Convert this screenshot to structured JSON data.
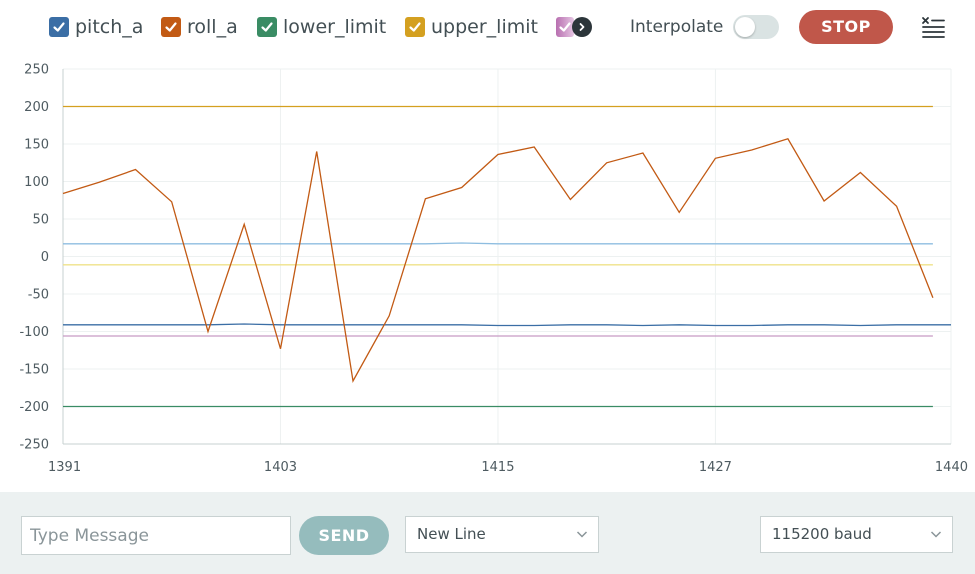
{
  "toolbar": {
    "legend": [
      {
        "label": "pitch_a",
        "color": "#3b6ea5",
        "checked": true
      },
      {
        "label": "roll_a",
        "color": "#c25a14",
        "checked": true
      },
      {
        "label": "lower_limit",
        "color": "#3a8c64",
        "checked": true
      },
      {
        "label": "upper_limit",
        "color": "#d4a020",
        "checked": true
      }
    ],
    "partial_legend_color": "#b86fb0",
    "more_icon": "chevron-right-icon",
    "interpolate_label": "Interpolate",
    "interpolate_on": false,
    "stop_label": "STOP",
    "clear_icon": "clear-list-icon"
  },
  "chart_data": {
    "type": "line",
    "x": [
      1391,
      1393,
      1395,
      1397,
      1399,
      1401,
      1403,
      1405,
      1407,
      1409,
      1411,
      1413,
      1415,
      1417,
      1419,
      1421,
      1423,
      1425,
      1427,
      1429,
      1431,
      1433,
      1435,
      1437,
      1439,
      1440
    ],
    "xticks": [
      1391,
      1403,
      1415,
      1427,
      1440
    ],
    "ylim": [
      -250,
      250
    ],
    "yticks": [
      250,
      200,
      150,
      100,
      50,
      0,
      -50,
      -100,
      -150,
      -200,
      -250
    ],
    "grid": true,
    "series": [
      {
        "name": "roll_a",
        "color": "#c25a14",
        "values": [
          84,
          99,
          116,
          73,
          -100,
          43,
          -123,
          140,
          -166,
          -79,
          77,
          92,
          136,
          146,
          76,
          125,
          138,
          59,
          131,
          142,
          157,
          74,
          112,
          67,
          -55,
          null
        ]
      },
      {
        "name": "pitch_a",
        "color": "#3b6ea5",
        "values": [
          -91,
          -91,
          -91,
          -91,
          -91,
          -90,
          -91,
          -91,
          -91,
          -91,
          -91,
          -91,
          -92,
          -92,
          -91,
          -91,
          -92,
          -91,
          -92,
          -92,
          -91,
          -91,
          -92,
          -91,
          -91,
          -91
        ]
      },
      {
        "name": "lower_limit",
        "color": "#3a8c64",
        "values": [
          -200,
          -200,
          -200,
          -200,
          -200,
          -200,
          -200,
          -200,
          -200,
          -200,
          -200,
          -200,
          -200,
          -200,
          -200,
          -200,
          -200,
          -200,
          -200,
          -200,
          -200,
          -200,
          -200,
          -200,
          -200,
          null
        ]
      },
      {
        "name": "upper_limit",
        "color": "#d4a020",
        "values": [
          200,
          200,
          200,
          200,
          200,
          200,
          200,
          200,
          200,
          200,
          200,
          200,
          200,
          200,
          200,
          200,
          200,
          200,
          200,
          200,
          200,
          200,
          200,
          200,
          200,
          null
        ]
      },
      {
        "color": "#8ebde0",
        "values": [
          17,
          17,
          17,
          17,
          17,
          17,
          17,
          17,
          17,
          17,
          17,
          18,
          17,
          17,
          17,
          17,
          17,
          17,
          17,
          17,
          17,
          17,
          17,
          17,
          17,
          null
        ]
      },
      {
        "color": "#efe28a",
        "values": [
          -11,
          -11,
          -11,
          -11,
          -11,
          -11,
          -11,
          -11,
          -11,
          -11,
          -11,
          -11,
          -11,
          -11,
          -11,
          -11,
          -11,
          -11,
          -11,
          -11,
          -11,
          -11,
          -11,
          -11,
          -11,
          null
        ]
      },
      {
        "color": "#c79ac4",
        "values": [
          -106,
          -106,
          -106,
          -106,
          -106,
          -106,
          -106,
          -106,
          -106,
          -106,
          -106,
          -106,
          -106,
          -106,
          -106,
          -106,
          -106,
          -106,
          -106,
          -106,
          -106,
          -106,
          -106,
          -106,
          -106,
          null
        ]
      }
    ]
  },
  "bottom": {
    "message_placeholder": "Type Message",
    "send_label": "SEND",
    "line_ending": "New Line",
    "baud_rate": "115200 baud"
  }
}
